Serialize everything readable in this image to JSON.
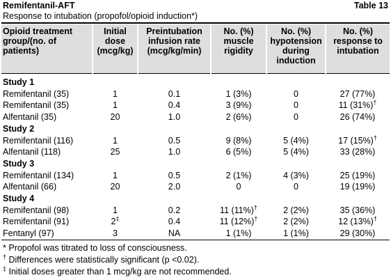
{
  "header": {
    "title": "Remifentanil-AFT",
    "table_number": "Table 13",
    "subtitle": "Response to intubation (propofol/opioid induction*)"
  },
  "table": {
    "columns": [
      [
        "Opioid treatment",
        "group/(no. of",
        "patients)"
      ],
      [
        "Initial",
        "dose",
        "(mcg/kg)"
      ],
      [
        "Preintubation",
        "infusion rate",
        "(mcg/kg/min)"
      ],
      [
        "No. (%)",
        "muscle",
        "rigidity"
      ],
      [
        "No. (%)",
        "hypotension",
        "during",
        "induction"
      ],
      [
        "No. (%)",
        "response to",
        "intubation"
      ]
    ],
    "rows": [
      {
        "study": "Study 1"
      },
      {
        "label": "Remifentanil (35)",
        "cells": [
          "1",
          "0.1",
          "1 (3%)",
          "0",
          "27 (77%)"
        ]
      },
      {
        "label": "Remifentanil (35)",
        "cells": [
          "1",
          "0.4",
          "3 (9%)",
          "0",
          {
            "text": "11 (31%)",
            "sup": "†"
          }
        ]
      },
      {
        "label": "Alfentanil (35)",
        "cells": [
          "20",
          "1.0",
          "2 (6%)",
          "0",
          "26 (74%)"
        ]
      },
      {
        "study": "Study 2"
      },
      {
        "label": "Remifentanil (116)",
        "cells": [
          "1",
          "0.5",
          "9 (8%)",
          "5 (4%)",
          {
            "text": "17 (15%)",
            "sup": "†"
          }
        ]
      },
      {
        "label": "Alfentanil (118)",
        "cells": [
          "25",
          "1.0",
          "6 (5%)",
          "5 (4%)",
          "33 (28%)"
        ]
      },
      {
        "study": "Study 3"
      },
      {
        "label": "Remifentanil (134)",
        "cells": [
          "1",
          "0.5",
          "2 (1%)",
          "4 (3%)",
          "25 (19%)"
        ]
      },
      {
        "label": "Alfentanil (66)",
        "cells": [
          "20",
          "2.0",
          "0",
          "0",
          "19 (19%)"
        ]
      },
      {
        "study": "Study 4"
      },
      {
        "label": "Remifentanil (98)",
        "cells": [
          "1",
          "0.2",
          {
            "text": "11 (11%)",
            "sup": "†"
          },
          "2 (2%)",
          "35 (36%)"
        ]
      },
      {
        "label": "Remifentanil (91)",
        "cells": [
          {
            "text": "2",
            "sup": "‡"
          },
          "0.4",
          {
            "text": "11 (12%)",
            "sup": "†"
          },
          "2 (2%)",
          {
            "text": "12 (13%)",
            "sup": "†"
          }
        ]
      },
      {
        "label": "Fentanyl (97)",
        "cells": [
          "3",
          "NA",
          "1 (1%)",
          "1 (1%)",
          "29 (30%)"
        ]
      }
    ]
  },
  "footnotes": [
    {
      "mark": "*",
      "superscript": false,
      "text": "Propofol was titrated to loss of consciousness."
    },
    {
      "mark": "†",
      "superscript": true,
      "text": "Differences were statistically significant (p <0.02)."
    },
    {
      "mark": "‡",
      "superscript": true,
      "text": "Initial doses greater than 1 mcg/kg are not recommended."
    }
  ]
}
